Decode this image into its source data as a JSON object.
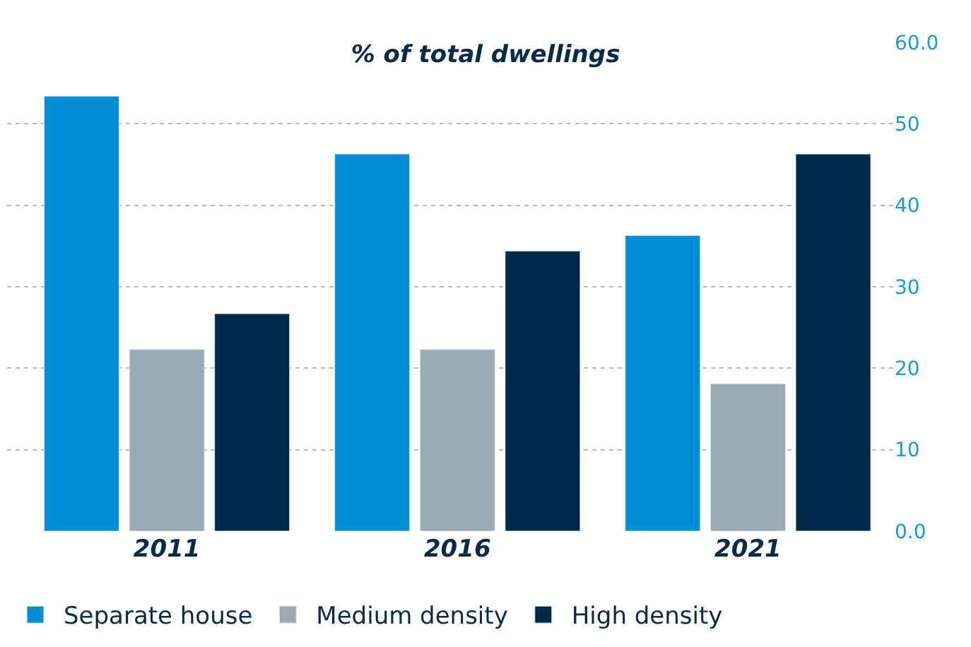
{
  "chart_data": {
    "type": "bar",
    "title": "% of total dwellings",
    "categories": [
      "2011",
      "2016",
      "2021"
    ],
    "series": [
      {
        "name": "Separate house",
        "color": "#008fd5",
        "values": [
          53.4,
          46.3,
          36.3
        ]
      },
      {
        "name": "Medium density",
        "color": "#9aabb4",
        "values": [
          22.3,
          22.3,
          18.1
        ]
      },
      {
        "name": "High density",
        "color": "#002a4a",
        "values": [
          26.7,
          34.4,
          46.3
        ]
      }
    ],
    "ylim": [
      0,
      60
    ],
    "yticks": [
      {
        "value": 0,
        "label": "0.0"
      },
      10,
      20,
      30,
      40,
      50,
      {
        "value": 60,
        "label": "60.0"
      }
    ],
    "grid": "y",
    "legend": "bottom"
  }
}
